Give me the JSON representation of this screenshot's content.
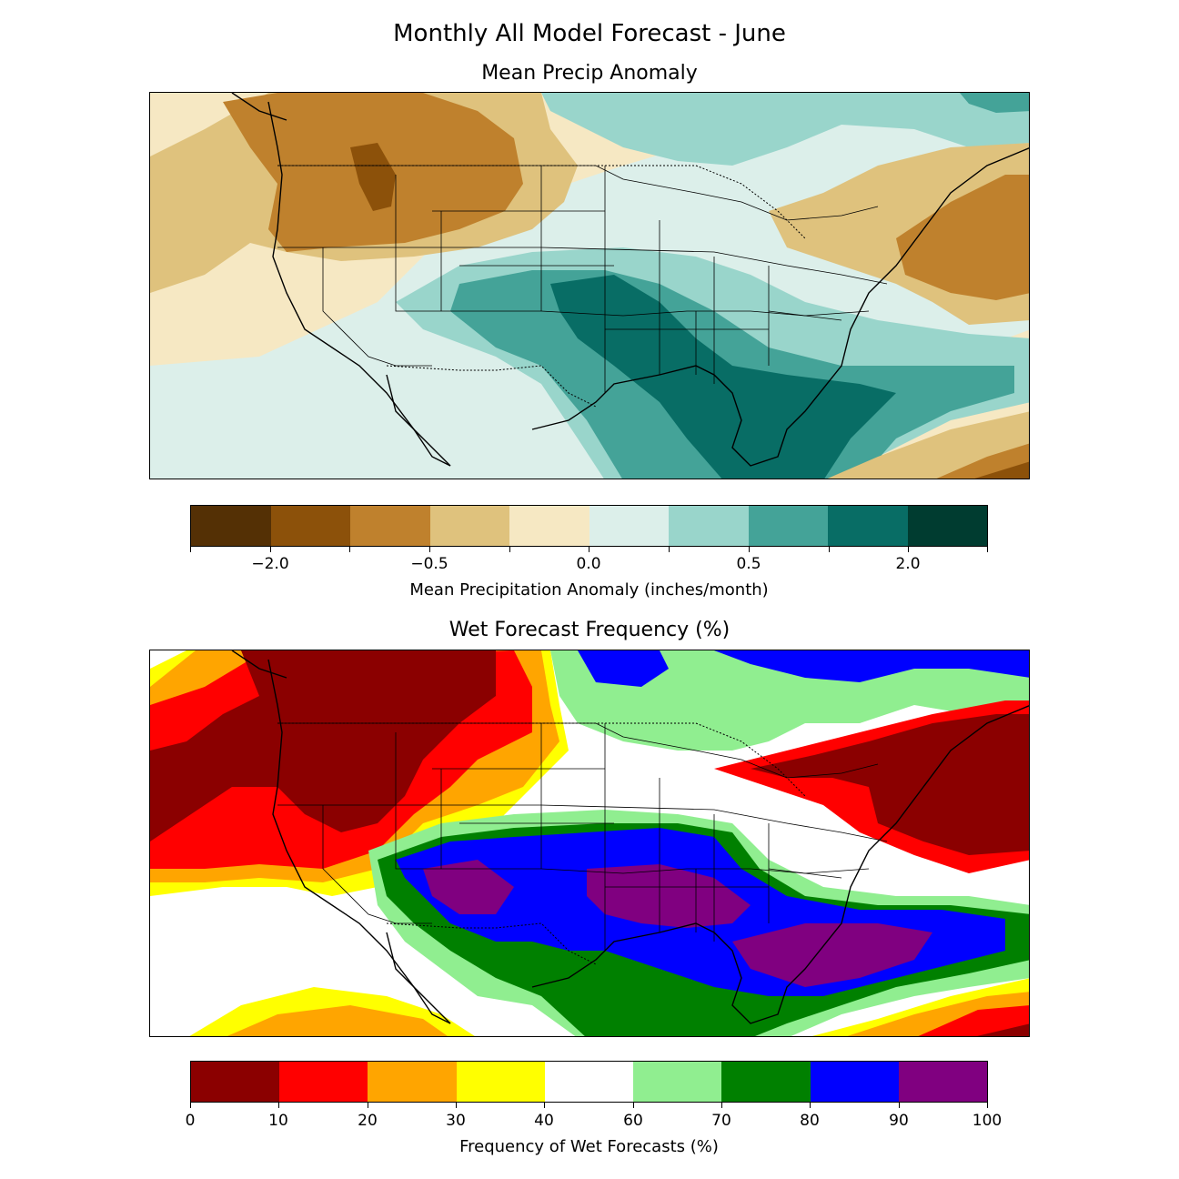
{
  "figure": {
    "title": "Monthly All Model Forecast - June"
  },
  "panels": [
    {
      "title": "Mean Precip Anomaly",
      "colorbar": {
        "label": "Mean Precipitation Anomaly (inches/month)",
        "colors": [
          "#543005",
          "#8c510a",
          "#bf812d",
          "#dfc27d",
          "#f6e8c3",
          "#dcefea",
          "#99d5cb",
          "#44a398",
          "#086d65",
          "#003c30"
        ],
        "tick_labels": [
          "−2.0",
          "−0.5",
          "0.0",
          "0.5",
          "2.0"
        ]
      }
    },
    {
      "title": "Wet Forecast Frequency (%)",
      "colorbar": {
        "label": "Frequency of Wet Forecasts (%)",
        "colors": [
          "#8b0000",
          "#ff0000",
          "#ffa500",
          "#ffff00",
          "#ffffff",
          "#90ee90",
          "#008000",
          "#0000ff",
          "#800080"
        ],
        "tick_labels": [
          "0",
          "10",
          "20",
          "30",
          "40",
          "60",
          "70",
          "80",
          "90",
          "100"
        ]
      }
    }
  ]
}
